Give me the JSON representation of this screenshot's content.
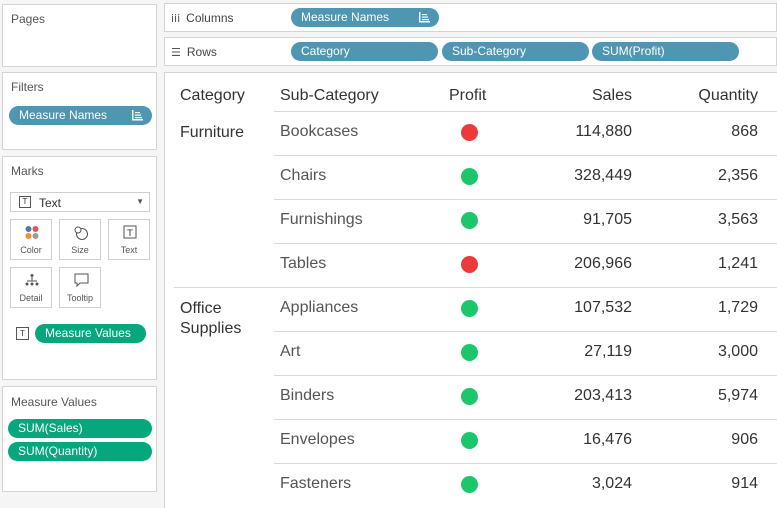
{
  "pages_panel": {
    "title": "Pages"
  },
  "filters_panel": {
    "title": "Filters",
    "pills": [
      "Measure Names"
    ]
  },
  "marks_panel": {
    "title": "Marks",
    "mark_type": "Text",
    "buttons": [
      {
        "label": "Color",
        "icon": "color-icon"
      },
      {
        "label": "Size",
        "icon": "size-icon"
      },
      {
        "label": "Text",
        "icon": "text-icon"
      },
      {
        "label": "Detail",
        "icon": "detail-icon"
      },
      {
        "label": "Tooltip",
        "icon": "tooltip-icon"
      }
    ],
    "text_pill": "Measure Values"
  },
  "measure_values_panel": {
    "title": "Measure Values",
    "pills": [
      "SUM(Sales)",
      "SUM(Quantity)"
    ]
  },
  "columns_shelf": {
    "label": "Columns",
    "pills": [
      "Measure Names"
    ]
  },
  "rows_shelf": {
    "label": "Rows",
    "pills": [
      "Category",
      "Sub-Category",
      "SUM(Profit)"
    ]
  },
  "table": {
    "headers": {
      "category": "Category",
      "sub_category": "Sub-Category",
      "profit": "Profit",
      "sales": "Sales",
      "quantity": "Quantity"
    },
    "groups": [
      {
        "category": "Furniture",
        "rows": [
          {
            "sub_category": "Bookcases",
            "profit_status": "negative",
            "sales": "114,880",
            "quantity": "868"
          },
          {
            "sub_category": "Chairs",
            "profit_status": "positive",
            "sales": "328,449",
            "quantity": "2,356"
          },
          {
            "sub_category": "Furnishings",
            "profit_status": "positive",
            "sales": "91,705",
            "quantity": "3,563"
          },
          {
            "sub_category": "Tables",
            "profit_status": "negative",
            "sales": "206,966",
            "quantity": "1,241"
          }
        ]
      },
      {
        "category": "Office Supplies",
        "rows": [
          {
            "sub_category": "Appliances",
            "profit_status": "positive",
            "sales": "107,532",
            "quantity": "1,729"
          },
          {
            "sub_category": "Art",
            "profit_status": "positive",
            "sales": "27,119",
            "quantity": "3,000"
          },
          {
            "sub_category": "Binders",
            "profit_status": "positive",
            "sales": "203,413",
            "quantity": "5,974"
          },
          {
            "sub_category": "Envelopes",
            "profit_status": "positive",
            "sales": "16,476",
            "quantity": "906"
          },
          {
            "sub_category": "Fasteners",
            "profit_status": "positive",
            "sales": "3,024",
            "quantity": "914"
          }
        ]
      }
    ]
  },
  "colors": {
    "positive": "#1cc76b",
    "negative": "#ec3a3a",
    "dimension_pill": "#4e96b1",
    "measure_pill": "#06a77d"
  }
}
